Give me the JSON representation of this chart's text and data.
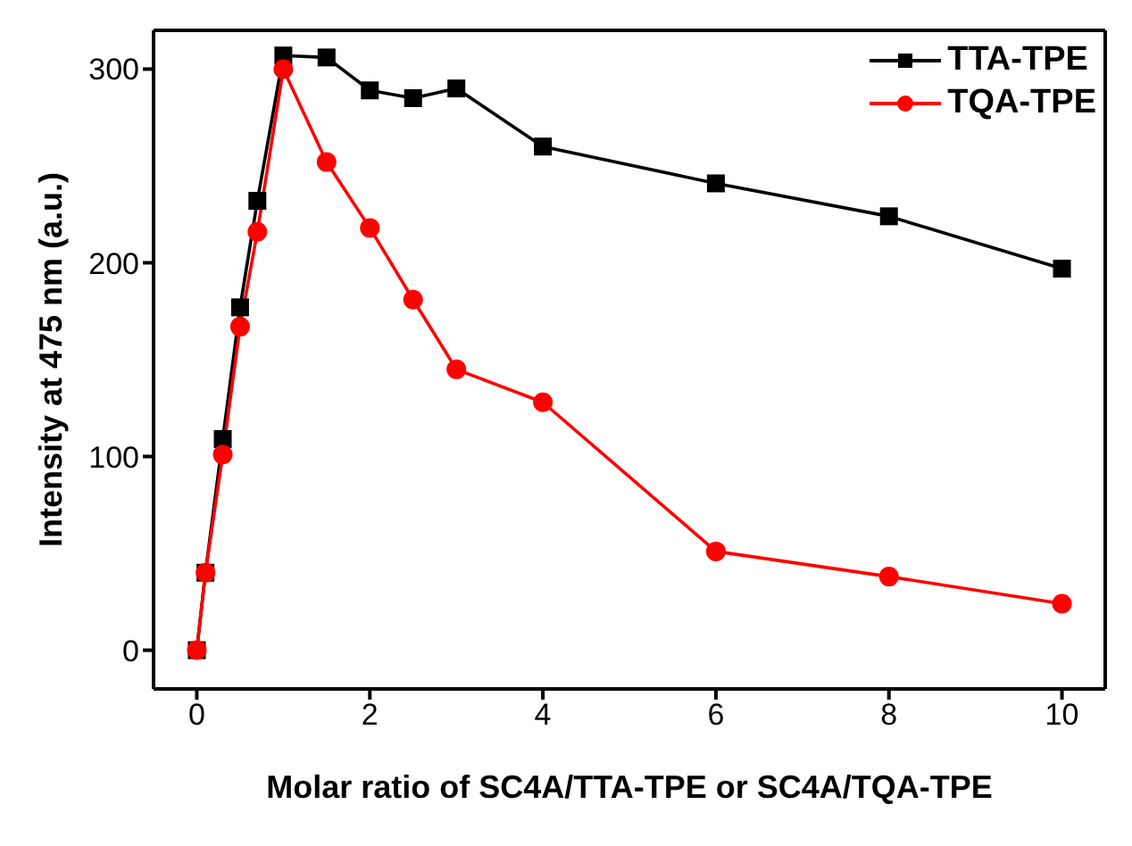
{
  "chart_data": {
    "type": "line",
    "xlabel": "Molar ratio of SC4A/TTA-TPE or SC4A/TQA-TPE",
    "ylabel": "Intensity at 475 nm (a.u.)",
    "xlim": [
      -0.5,
      10.5
    ],
    "xticks": [
      0,
      2,
      4,
      6,
      8,
      10
    ],
    "ylim": [
      -20,
      320
    ],
    "yticks": [
      0,
      100,
      200,
      300
    ],
    "legend": "top right",
    "series": [
      {
        "name": "TTA-TPE",
        "color": "#000000",
        "marker": "square",
        "x": [
          0,
          0.1,
          0.3,
          0.5,
          0.7,
          1,
          1.5,
          2,
          2.5,
          3,
          4,
          6,
          8,
          10
        ],
        "values": [
          0,
          40,
          109,
          177,
          232,
          307,
          306,
          289,
          285,
          290,
          260,
          241,
          224,
          197
        ]
      },
      {
        "name": "TQA-TPE",
        "color": "#ff0000",
        "marker": "circle",
        "x": [
          0,
          0.1,
          0.3,
          0.5,
          0.7,
          1,
          1.5,
          2,
          2.5,
          3,
          4,
          6,
          8,
          10
        ],
        "values": [
          0,
          40,
          101,
          167,
          216,
          300,
          252,
          218,
          181,
          145,
          128,
          51,
          38,
          24
        ]
      }
    ]
  }
}
